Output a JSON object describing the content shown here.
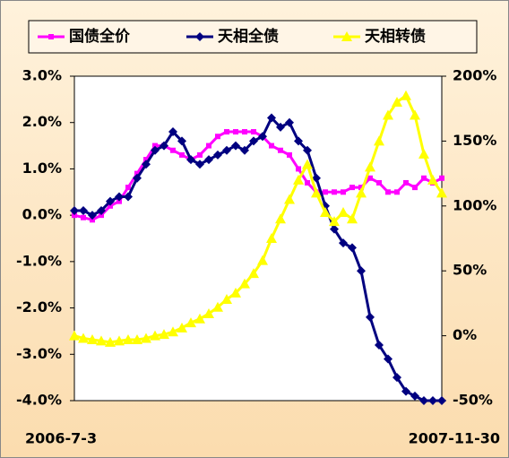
{
  "chart_data": {
    "type": "line",
    "categories": [
      "2006-7-3",
      null,
      null,
      null,
      null,
      null,
      null,
      null,
      null,
      null,
      null,
      null,
      null,
      null,
      null,
      null,
      null,
      null,
      null,
      null,
      null,
      null,
      null,
      null,
      null,
      null,
      null,
      null,
      null,
      null,
      null,
      null,
      null,
      null,
      null,
      null,
      null,
      null,
      null,
      null,
      null,
      "2007-11-30"
    ],
    "series": [
      {
        "name": "国债全价",
        "color": "#ff00ff",
        "marker": "square",
        "values": [
          0.0,
          -0.05,
          -0.1,
          0.0,
          0.2,
          0.3,
          0.6,
          0.9,
          1.2,
          1.5,
          1.5,
          1.4,
          1.3,
          1.2,
          1.3,
          1.5,
          1.7,
          1.8,
          1.8,
          1.8,
          1.8,
          1.7,
          1.5,
          1.4,
          1.3,
          1.0,
          0.7,
          0.5,
          0.5,
          0.5,
          0.5,
          0.6,
          0.6,
          0.8,
          0.7,
          0.5,
          0.5,
          0.7,
          0.6,
          0.8,
          0.7,
          0.8
        ]
      },
      {
        "name": "天相全债",
        "color": "#000080",
        "marker": "diamond",
        "values": [
          0.1,
          0.1,
          0.0,
          0.1,
          0.3,
          0.4,
          0.4,
          0.8,
          1.1,
          1.4,
          1.5,
          1.8,
          1.6,
          1.2,
          1.1,
          1.2,
          1.3,
          1.4,
          1.5,
          1.4,
          1.6,
          1.7,
          2.1,
          1.9,
          2.0,
          1.6,
          1.4,
          0.8,
          0.2,
          -0.3,
          -0.6,
          -0.7,
          -1.2,
          -2.2,
          -2.8,
          -3.1,
          -3.5,
          -3.8,
          -3.9,
          -4.0,
          -4.0,
          -4.0
        ]
      },
      {
        "name": "天相转债",
        "color": "#ffff00",
        "marker": "triangle",
        "axis": "y2",
        "values": [
          0,
          -2,
          -3,
          -4,
          -5,
          -4,
          -3,
          -3,
          -2,
          0,
          1,
          3,
          6,
          10,
          13,
          17,
          22,
          28,
          33,
          40,
          48,
          58,
          75,
          90,
          105,
          120,
          132,
          110,
          95,
          88,
          95,
          90,
          110,
          130,
          150,
          170,
          180,
          185,
          170,
          140,
          120,
          110
        ]
      }
    ],
    "ylim": [
      -4,
      3
    ],
    "yticks": [
      {
        "value": -4,
        "label": "-4.0%"
      },
      {
        "value": -3,
        "label": "-3.0%"
      },
      {
        "value": -2,
        "label": "-2.0%"
      },
      {
        "value": -1,
        "label": "-1.0%"
      },
      {
        "value": 0,
        "label": "0.0%"
      },
      {
        "value": 1,
        "label": "1.0%"
      },
      {
        "value": 2,
        "label": "2.0%"
      },
      {
        "value": 3,
        "label": "3.0%"
      }
    ],
    "y2lim": [
      -50,
      200
    ],
    "y2ticks": [
      {
        "value": -50,
        "label": "-50%"
      },
      {
        "value": 0,
        "label": "0%"
      },
      {
        "value": 50,
        "label": "50%"
      },
      {
        "value": 100,
        "label": "100%"
      },
      {
        "value": 150,
        "label": "150%"
      },
      {
        "value": 200,
        "label": "200%"
      }
    ],
    "legend": "top",
    "grid": false
  }
}
